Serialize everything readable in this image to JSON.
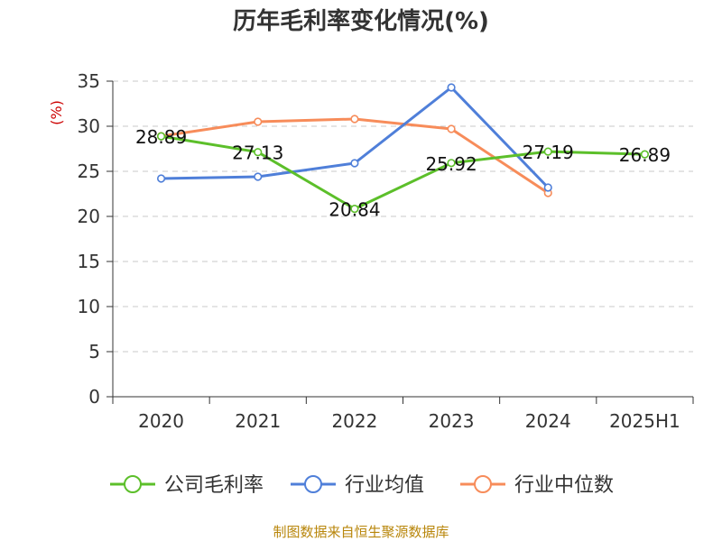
{
  "chart_data": {
    "type": "line",
    "title": "历年毛利率变化情况(%)",
    "ylabel": "(%)",
    "categories": [
      "2020",
      "2021",
      "2022",
      "2023",
      "2024",
      "2025H1"
    ],
    "ylim": [
      0,
      35
    ],
    "yticks": [
      0,
      5,
      10,
      15,
      20,
      25,
      30,
      35
    ],
    "grid": true,
    "legend_position": "bottom",
    "series": [
      {
        "name": "公司毛利率",
        "color": "#5cbf2a",
        "values": [
          28.89,
          27.13,
          20.84,
          25.92,
          27.19,
          26.89
        ],
        "labels": [
          "28.89",
          "27.13",
          "20.84",
          "25.92",
          "27.19",
          "26.89"
        ]
      },
      {
        "name": "行业均值",
        "color": "#4f7fd9",
        "values": [
          24.2,
          24.4,
          25.9,
          34.3,
          23.2,
          null
        ]
      },
      {
        "name": "行业中位数",
        "color": "#f78c5a",
        "values": [
          28.9,
          30.5,
          30.8,
          29.7,
          22.6,
          null
        ]
      }
    ]
  },
  "source_text": "制图数据来自恒生聚源数据库"
}
